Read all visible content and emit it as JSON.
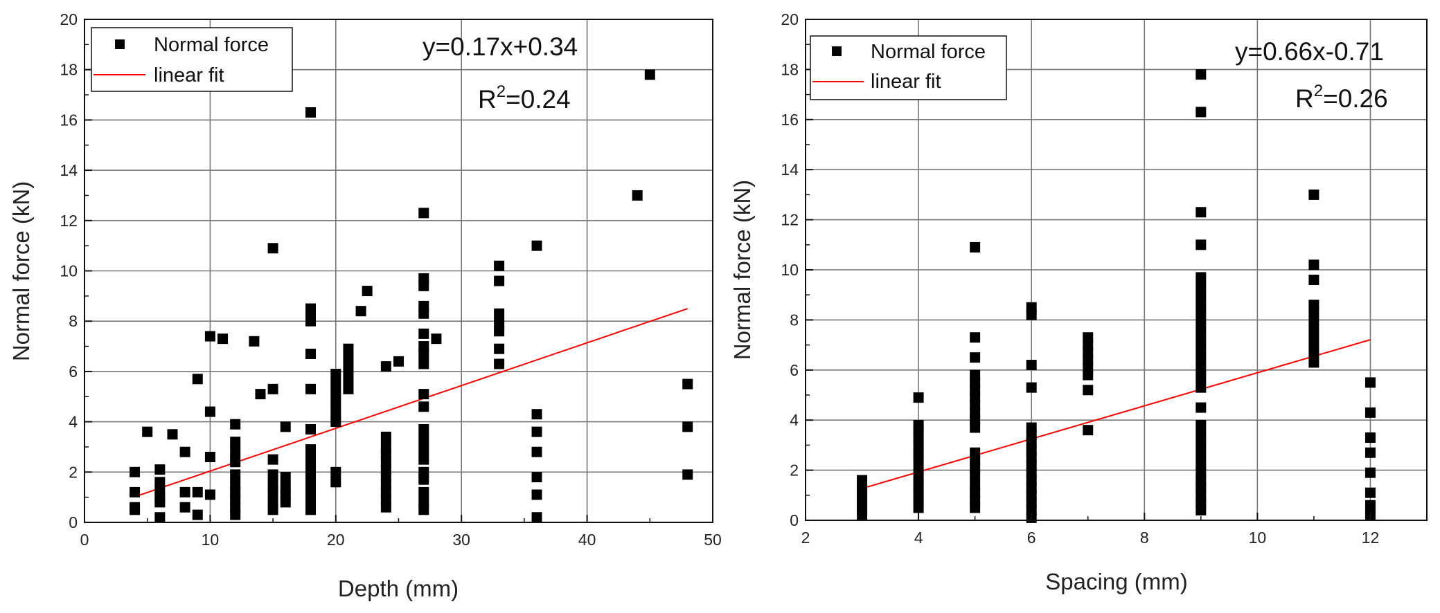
{
  "chart_data": [
    {
      "type": "scatter",
      "xlabel": "Depth (mm)",
      "ylabel": "Normal force (kN)",
      "xlim": [
        0,
        50
      ],
      "ylim": [
        0,
        20
      ],
      "xticks": [
        0,
        10,
        20,
        30,
        40,
        50
      ],
      "yticks": [
        0,
        2,
        4,
        6,
        8,
        10,
        12,
        14,
        16,
        18,
        20
      ],
      "grid": true,
      "legend_position": "top-left",
      "series": [
        {
          "name": "Normal force",
          "marker": "square",
          "color": "#000000",
          "points": [
            [
              4,
              0.5
            ],
            [
              4,
              0.6
            ],
            [
              4,
              1.2
            ],
            [
              4,
              2.0
            ],
            [
              5,
              3.6
            ],
            [
              6,
              0.2
            ],
            [
              6,
              0.8
            ],
            [
              6,
              1.0
            ],
            [
              6,
              1.3
            ],
            [
              6,
              1.6
            ],
            [
              6,
              2.1
            ],
            [
              7,
              3.5
            ],
            [
              8,
              0.6
            ],
            [
              8,
              1.2
            ],
            [
              8,
              2.8
            ],
            [
              9,
              0.3
            ],
            [
              9,
              1.2
            ],
            [
              9,
              5.7
            ],
            [
              10,
              1.1
            ],
            [
              10,
              2.6
            ],
            [
              10,
              4.4
            ],
            [
              10,
              7.4
            ],
            [
              11,
              7.3
            ],
            [
              12,
              0.3
            ],
            [
              12,
              0.6
            ],
            [
              12,
              0.9
            ],
            [
              12,
              1.2
            ],
            [
              12,
              1.5
            ],
            [
              12,
              1.9
            ],
            [
              12,
              2.4
            ],
            [
              12,
              2.8
            ],
            [
              12,
              3.2
            ],
            [
              12,
              3.9
            ],
            [
              13.5,
              7.2
            ],
            [
              14,
              5.1
            ],
            [
              15,
              0.5
            ],
            [
              15,
              0.8
            ],
            [
              15,
              1.2
            ],
            [
              15,
              1.5
            ],
            [
              15,
              1.9
            ],
            [
              15,
              2.5
            ],
            [
              15,
              5.3
            ],
            [
              15,
              10.9
            ],
            [
              16,
              0.8
            ],
            [
              16,
              1.1
            ],
            [
              16,
              1.4
            ],
            [
              16,
              1.8
            ],
            [
              16,
              3.8
            ],
            [
              18,
              0.5
            ],
            [
              18,
              0.8
            ],
            [
              18,
              1.1
            ],
            [
              18,
              1.4
            ],
            [
              18,
              1.7
            ],
            [
              18,
              2.0
            ],
            [
              18,
              2.3
            ],
            [
              18,
              2.6
            ],
            [
              18,
              2.9
            ],
            [
              18,
              3.7
            ],
            [
              18,
              5.3
            ],
            [
              18,
              6.7
            ],
            [
              18,
              8.0
            ],
            [
              18,
              8.3
            ],
            [
              18,
              8.5
            ],
            [
              18,
              16.3
            ],
            [
              20,
              1.6
            ],
            [
              20,
              2.0
            ],
            [
              20,
              4.0
            ],
            [
              20,
              4.3
            ],
            [
              20,
              4.7
            ],
            [
              20,
              5.1
            ],
            [
              20,
              5.5
            ],
            [
              20,
              5.9
            ],
            [
              21,
              5.3
            ],
            [
              21,
              5.7
            ],
            [
              21,
              6.1
            ],
            [
              21,
              6.5
            ],
            [
              21,
              6.9
            ],
            [
              22,
              8.4
            ],
            [
              22.5,
              9.2
            ],
            [
              24,
              0.6
            ],
            [
              24,
              0.9
            ],
            [
              24,
              1.2
            ],
            [
              24,
              1.5
            ],
            [
              24,
              1.8
            ],
            [
              24,
              2.1
            ],
            [
              24,
              2.4
            ],
            [
              24,
              2.7
            ],
            [
              24,
              3.0
            ],
            [
              24,
              3.4
            ],
            [
              24,
              6.2
            ],
            [
              25,
              6.4
            ],
            [
              27,
              0.5
            ],
            [
              27,
              0.8
            ],
            [
              27,
              1.2
            ],
            [
              27,
              1.7
            ],
            [
              27,
              2.0
            ],
            [
              27,
              2.5
            ],
            [
              27,
              2.9
            ],
            [
              27,
              3.3
            ],
            [
              27,
              3.7
            ],
            [
              27,
              4.6
            ],
            [
              27,
              5.1
            ],
            [
              27,
              6.3
            ],
            [
              27,
              6.7
            ],
            [
              27,
              7.0
            ],
            [
              27,
              7.5
            ],
            [
              27,
              8.3
            ],
            [
              27,
              8.6
            ],
            [
              27,
              9.4
            ],
            [
              27,
              9.7
            ],
            [
              27,
              12.3
            ],
            [
              28,
              7.3
            ],
            [
              33,
              6.3
            ],
            [
              33,
              6.9
            ],
            [
              33,
              7.6
            ],
            [
              33,
              7.9
            ],
            [
              33,
              8.3
            ],
            [
              33,
              9.6
            ],
            [
              33,
              10.2
            ],
            [
              36,
              0.2
            ],
            [
              36,
              1.1
            ],
            [
              36,
              1.8
            ],
            [
              36,
              2.8
            ],
            [
              36,
              3.6
            ],
            [
              36,
              4.3
            ],
            [
              36,
              11.0
            ],
            [
              44,
              13.0
            ],
            [
              45,
              17.8
            ],
            [
              48,
              1.9
            ],
            [
              48,
              3.8
            ],
            [
              48,
              5.5
            ]
          ]
        },
        {
          "name": "linear fit",
          "type": "line",
          "color": "#ff0000",
          "points": [
            [
              4,
              1.02
            ],
            [
              48,
              8.5
            ]
          ]
        }
      ],
      "annotations": {
        "equation": "y=0.17x+0.34",
        "r2_prefix": "R",
        "r2_exp": "2",
        "r2_value": "=0.24"
      }
    },
    {
      "type": "scatter",
      "xlabel": "Spacing (mm)",
      "ylabel": "Normal force (kN)",
      "xlim": [
        2,
        13
      ],
      "ylim": [
        0,
        20
      ],
      "xticks": [
        2,
        4,
        6,
        8,
        10,
        12
      ],
      "yticks": [
        0,
        2,
        4,
        6,
        8,
        10,
        12,
        14,
        16,
        18,
        20
      ],
      "grid": true,
      "legend_position": "top-left",
      "series": [
        {
          "name": "Normal force",
          "marker": "square",
          "color": "#000000",
          "points": [
            [
              3,
              0.2
            ],
            [
              3,
              0.4
            ],
            [
              3,
              0.6
            ],
            [
              3,
              0.8
            ],
            [
              3,
              1.0
            ],
            [
              3,
              1.2
            ],
            [
              3,
              1.4
            ],
            [
              3,
              1.6
            ],
            [
              4,
              0.5
            ],
            [
              4,
              0.8
            ],
            [
              4,
              1.1
            ],
            [
              4,
              1.4
            ],
            [
              4,
              1.7
            ],
            [
              4,
              2.0
            ],
            [
              4,
              2.4
            ],
            [
              4,
              2.7
            ],
            [
              4,
              3.0
            ],
            [
              4,
              3.3
            ],
            [
              4,
              3.6
            ],
            [
              4,
              3.8
            ],
            [
              4,
              4.9
            ],
            [
              5,
              0.5
            ],
            [
              5,
              0.8
            ],
            [
              5,
              1.1
            ],
            [
              5,
              1.4
            ],
            [
              5,
              1.8
            ],
            [
              5,
              2.1
            ],
            [
              5,
              2.4
            ],
            [
              5,
              2.7
            ],
            [
              5,
              3.7
            ],
            [
              5,
              4.0
            ],
            [
              5,
              4.3
            ],
            [
              5,
              4.6
            ],
            [
              5,
              4.9
            ],
            [
              5,
              5.2
            ],
            [
              5,
              5.5
            ],
            [
              5,
              5.8
            ],
            [
              5,
              6.5
            ],
            [
              5,
              7.3
            ],
            [
              5,
              10.9
            ],
            [
              6,
              0.1
            ],
            [
              6,
              0.4
            ],
            [
              6,
              0.7
            ],
            [
              6,
              1.0
            ],
            [
              6,
              1.3
            ],
            [
              6,
              1.6
            ],
            [
              6,
              1.9
            ],
            [
              6,
              2.2
            ],
            [
              6,
              2.5
            ],
            [
              6,
              2.8
            ],
            [
              6,
              3.1
            ],
            [
              6,
              3.4
            ],
            [
              6,
              3.7
            ],
            [
              6,
              5.3
            ],
            [
              6,
              6.2
            ],
            [
              6,
              8.2
            ],
            [
              6,
              8.5
            ],
            [
              7,
              3.6
            ],
            [
              7,
              5.2
            ],
            [
              7,
              5.8
            ],
            [
              7,
              6.1
            ],
            [
              7,
              6.4
            ],
            [
              7,
              6.7
            ],
            [
              7,
              7.0
            ],
            [
              7,
              7.3
            ],
            [
              9,
              0.4
            ],
            [
              9,
              0.7
            ],
            [
              9,
              1.0
            ],
            [
              9,
              1.3
            ],
            [
              9,
              1.6
            ],
            [
              9,
              1.9
            ],
            [
              9,
              2.2
            ],
            [
              9,
              2.6
            ],
            [
              9,
              3.0
            ],
            [
              9,
              3.4
            ],
            [
              9,
              3.8
            ],
            [
              9,
              4.5
            ],
            [
              9,
              5.3
            ],
            [
              9,
              5.7
            ],
            [
              9,
              6.1
            ],
            [
              9,
              6.5
            ],
            [
              9,
              6.9
            ],
            [
              9,
              7.3
            ],
            [
              9,
              7.7
            ],
            [
              9,
              8.1
            ],
            [
              9,
              8.5
            ],
            [
              9,
              8.9
            ],
            [
              9,
              9.3
            ],
            [
              9,
              9.7
            ],
            [
              9,
              11.0
            ],
            [
              9,
              12.3
            ],
            [
              9,
              16.3
            ],
            [
              9,
              17.8
            ],
            [
              11,
              6.3
            ],
            [
              11,
              6.7
            ],
            [
              11,
              7.1
            ],
            [
              11,
              7.5
            ],
            [
              11,
              7.9
            ],
            [
              11,
              8.3
            ],
            [
              11,
              8.6
            ],
            [
              11,
              9.6
            ],
            [
              11,
              10.2
            ],
            [
              11,
              13.0
            ],
            [
              12,
              0.2
            ],
            [
              12,
              0.6
            ],
            [
              12,
              1.1
            ],
            [
              12,
              1.9
            ],
            [
              12,
              2.7
            ],
            [
              12,
              3.3
            ],
            [
              12,
              4.3
            ],
            [
              12,
              5.5
            ]
          ]
        },
        {
          "name": "linear fit",
          "type": "line",
          "color": "#ff0000",
          "points": [
            [
              3,
              1.27
            ],
            [
              12,
              7.21
            ]
          ]
        }
      ],
      "annotations": {
        "equation": "y=0.66x-0.71",
        "r2_prefix": "R",
        "r2_exp": "2",
        "r2_value": "=0.26"
      }
    }
  ]
}
